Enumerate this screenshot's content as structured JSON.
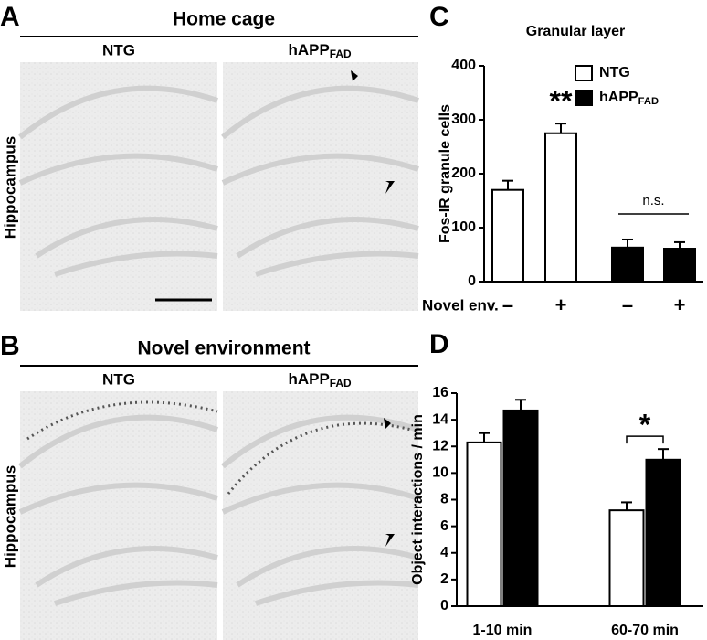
{
  "panels": [
    {
      "letter": "A",
      "title": "Home cage",
      "columns": [
        "NTG",
        {
          "text": "hAPP",
          "sub": "FAD"
        }
      ],
      "row_label": "Hippocampus"
    },
    {
      "letter": "B",
      "title": "Novel environment",
      "columns": [
        "NTG",
        {
          "text": "hAPP",
          "sub": "FAD"
        }
      ],
      "row_label": "Hippocampus"
    }
  ],
  "chart_data": [
    {
      "type": "bar",
      "panel_label": "C",
      "title": "Granular layer",
      "ylabel": "Fos-IR granule cells",
      "xlabel": "Novel env.",
      "categories": [
        "–",
        "+",
        "–",
        "+"
      ],
      "series": [
        {
          "name": "NTG",
          "color": "#ffffff",
          "values": [
            170,
            275,
            null,
            null
          ],
          "errors": [
            17,
            18,
            null,
            null
          ]
        },
        {
          "name": "hAPP",
          "name_sub": "FAD",
          "color": "#000000",
          "values": [
            null,
            null,
            63,
            61
          ],
          "errors": [
            null,
            null,
            15,
            12
          ]
        }
      ],
      "ylim": [
        0,
        400
      ],
      "yticks": [
        0,
        100,
        200,
        300,
        400
      ],
      "legend": "top-right",
      "annotations": [
        "**",
        "n.s."
      ]
    },
    {
      "type": "bar",
      "panel_label": "D",
      "ylabel": "Object interactions / min",
      "categories": [
        "1-10 min",
        "60-70 min"
      ],
      "series": [
        {
          "name": "NTG",
          "color": "#ffffff",
          "values": [
            12.3,
            7.2
          ],
          "errors": [
            0.7,
            0.6
          ]
        },
        {
          "name": "hAPP",
          "name_sub": "FAD",
          "color": "#000000",
          "values": [
            14.7,
            11.0
          ],
          "errors": [
            0.8,
            0.8
          ]
        }
      ],
      "ylim": [
        0,
        16
      ],
      "yticks": [
        0,
        2,
        4,
        6,
        8,
        10,
        12,
        14,
        16
      ],
      "annotations": [
        "*"
      ]
    }
  ]
}
